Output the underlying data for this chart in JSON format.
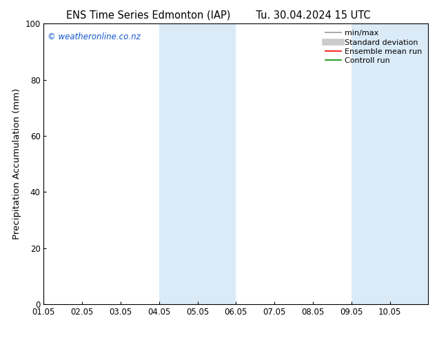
{
  "title_left": "ENS Time Series Edmonton (IAP)",
  "title_right": "Tu. 30.04.2024 15 UTC",
  "ylabel": "Precipitation Accumulation (mm)",
  "xlim_start": "2024-05-01",
  "xlim_end": "2024-05-11",
  "ylim": [
    0,
    100
  ],
  "yticks": [
    0,
    20,
    40,
    60,
    80,
    100
  ],
  "xtick_positions": [
    1,
    2,
    3,
    4,
    5,
    6,
    7,
    8,
    9,
    10
  ],
  "xtick_labels": [
    "01.05",
    "02.05",
    "03.05",
    "04.05",
    "05.05",
    "06.05",
    "07.05",
    "08.05",
    "09.05",
    "10.05"
  ],
  "shaded_bands": [
    {
      "start": 4,
      "end": 6
    },
    {
      "start": 9,
      "end": 11
    }
  ],
  "shaded_color": "#daeaf7",
  "watermark_text": "© weatheronline.co.nz",
  "watermark_color": "#1155cc",
  "background_color": "#ffffff",
  "legend_items": [
    {
      "label": "min/max",
      "color": "#999999",
      "lw": 1.2,
      "style": "solid"
    },
    {
      "label": "Standard deviation",
      "color": "#cccccc",
      "lw": 7,
      "style": "solid"
    },
    {
      "label": "Ensemble mean run",
      "color": "#ff0000",
      "lw": 1.2,
      "style": "solid"
    },
    {
      "label": "Controll run",
      "color": "#008800",
      "lw": 1.2,
      "style": "solid"
    }
  ],
  "title_fontsize": 10.5,
  "ylabel_fontsize": 9.5,
  "tick_fontsize": 8.5,
  "watermark_fontsize": 8.5,
  "legend_fontsize": 8
}
